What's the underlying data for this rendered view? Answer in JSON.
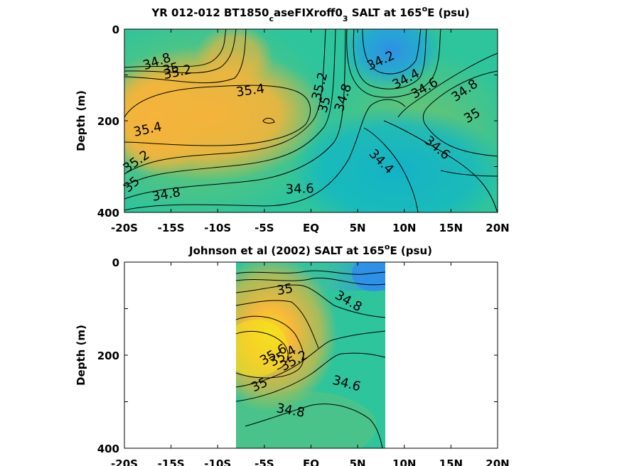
{
  "colors": {
    "low": "#2f8fe8",
    "mid_low": "#12b3c8",
    "mid": "#2ec49c",
    "mid_high": "#b6c44a",
    "high": "#f6b33a",
    "max": "#f5e11e"
  },
  "chart_data": [
    {
      "type": "heatmap",
      "title_main": "YR 012-012 BT1850",
      "title_sub": "c",
      "title_mid": "aseFIXroff0",
      "title_sub2": "3",
      "title_tail": " SALT at 165",
      "title_sup": "o",
      "title_end": "E (psu)",
      "ylabel": "Depth (m)",
      "xticks": [
        "-20S",
        "-15S",
        "-10S",
        "-5S",
        "EQ",
        "5N",
        "10N",
        "15N",
        "20N"
      ],
      "yticks": [
        "0",
        "200",
        "400"
      ],
      "xlim": [
        -20,
        20
      ],
      "ylim": [
        0,
        400
      ],
      "contour_labels": [
        {
          "text": "34.8",
          "lat": -16.5,
          "depth": 72,
          "rot": -18
        },
        {
          "text": "35",
          "lat": -15,
          "depth": 88,
          "rot": -15
        },
        {
          "text": "35.2",
          "lat": -14.3,
          "depth": 95,
          "rot": -12
        },
        {
          "text": "35.4",
          "lat": -6.5,
          "depth": 135,
          "rot": -8
        },
        {
          "text": "35.4",
          "lat": -17.5,
          "depth": 220,
          "rot": -12
        },
        {
          "text": "35.2",
          "lat": -18.7,
          "depth": 290,
          "rot": -35
        },
        {
          "text": "35",
          "lat": -19.2,
          "depth": 340,
          "rot": -40
        },
        {
          "text": "34.8",
          "lat": -15.5,
          "depth": 362,
          "rot": -10
        },
        {
          "text": "34.6",
          "lat": -1.2,
          "depth": 350,
          "rot": -2
        },
        {
          "text": "35.2",
          "lat": 1,
          "depth": 125,
          "rot": -75
        },
        {
          "text": "35",
          "lat": 1.5,
          "depth": 165,
          "rot": -75
        },
        {
          "text": "34.8",
          "lat": 3.5,
          "depth": 150,
          "rot": -72
        },
        {
          "text": "34.2",
          "lat": 7.5,
          "depth": 70,
          "rot": -25
        },
        {
          "text": "34.4",
          "lat": 10.2,
          "depth": 110,
          "rot": -28
        },
        {
          "text": "34.6",
          "lat": 12.2,
          "depth": 130,
          "rot": -30
        },
        {
          "text": "34.8",
          "lat": 16.5,
          "depth": 135,
          "rot": -35
        },
        {
          "text": "35",
          "lat": 17.3,
          "depth": 190,
          "rot": -30
        },
        {
          "text": "34.4",
          "lat": 7.5,
          "depth": 290,
          "rot": 45
        },
        {
          "text": "34.6",
          "lat": 13.5,
          "depth": 260,
          "rot": 40
        }
      ]
    },
    {
      "type": "heatmap",
      "title_main": "Johnson et al (2002) SALT at 165",
      "title_sup": "o",
      "title_end": "E (psu)",
      "ylabel": "Depth (m)",
      "xticks": [
        "-20S",
        "-15S",
        "-10S",
        "-5S",
        "EQ",
        "5N",
        "10N",
        "15N",
        "20N"
      ],
      "yticks": [
        "0",
        "200",
        "400"
      ],
      "xlim": [
        -20,
        20
      ],
      "ylim": [
        0,
        400
      ],
      "data_lat_range": [
        -8,
        8
      ],
      "contour_labels": [
        {
          "text": "35",
          "lat": -2.8,
          "depth": 60,
          "rot": -10
        },
        {
          "text": "34.8",
          "lat": 4,
          "depth": 85,
          "rot": 30
        },
        {
          "text": "35.6",
          "lat": -4,
          "depth": 200,
          "rot": -30
        },
        {
          "text": "35.4",
          "lat": -3,
          "depth": 203,
          "rot": -30
        },
        {
          "text": "35.2",
          "lat": -1.8,
          "depth": 213,
          "rot": -28
        },
        {
          "text": "35",
          "lat": -5.5,
          "depth": 265,
          "rot": -25
        },
        {
          "text": "34.6",
          "lat": 3.8,
          "depth": 262,
          "rot": 15
        },
        {
          "text": "34.8",
          "lat": -2.2,
          "depth": 320,
          "rot": 10
        }
      ]
    }
  ]
}
